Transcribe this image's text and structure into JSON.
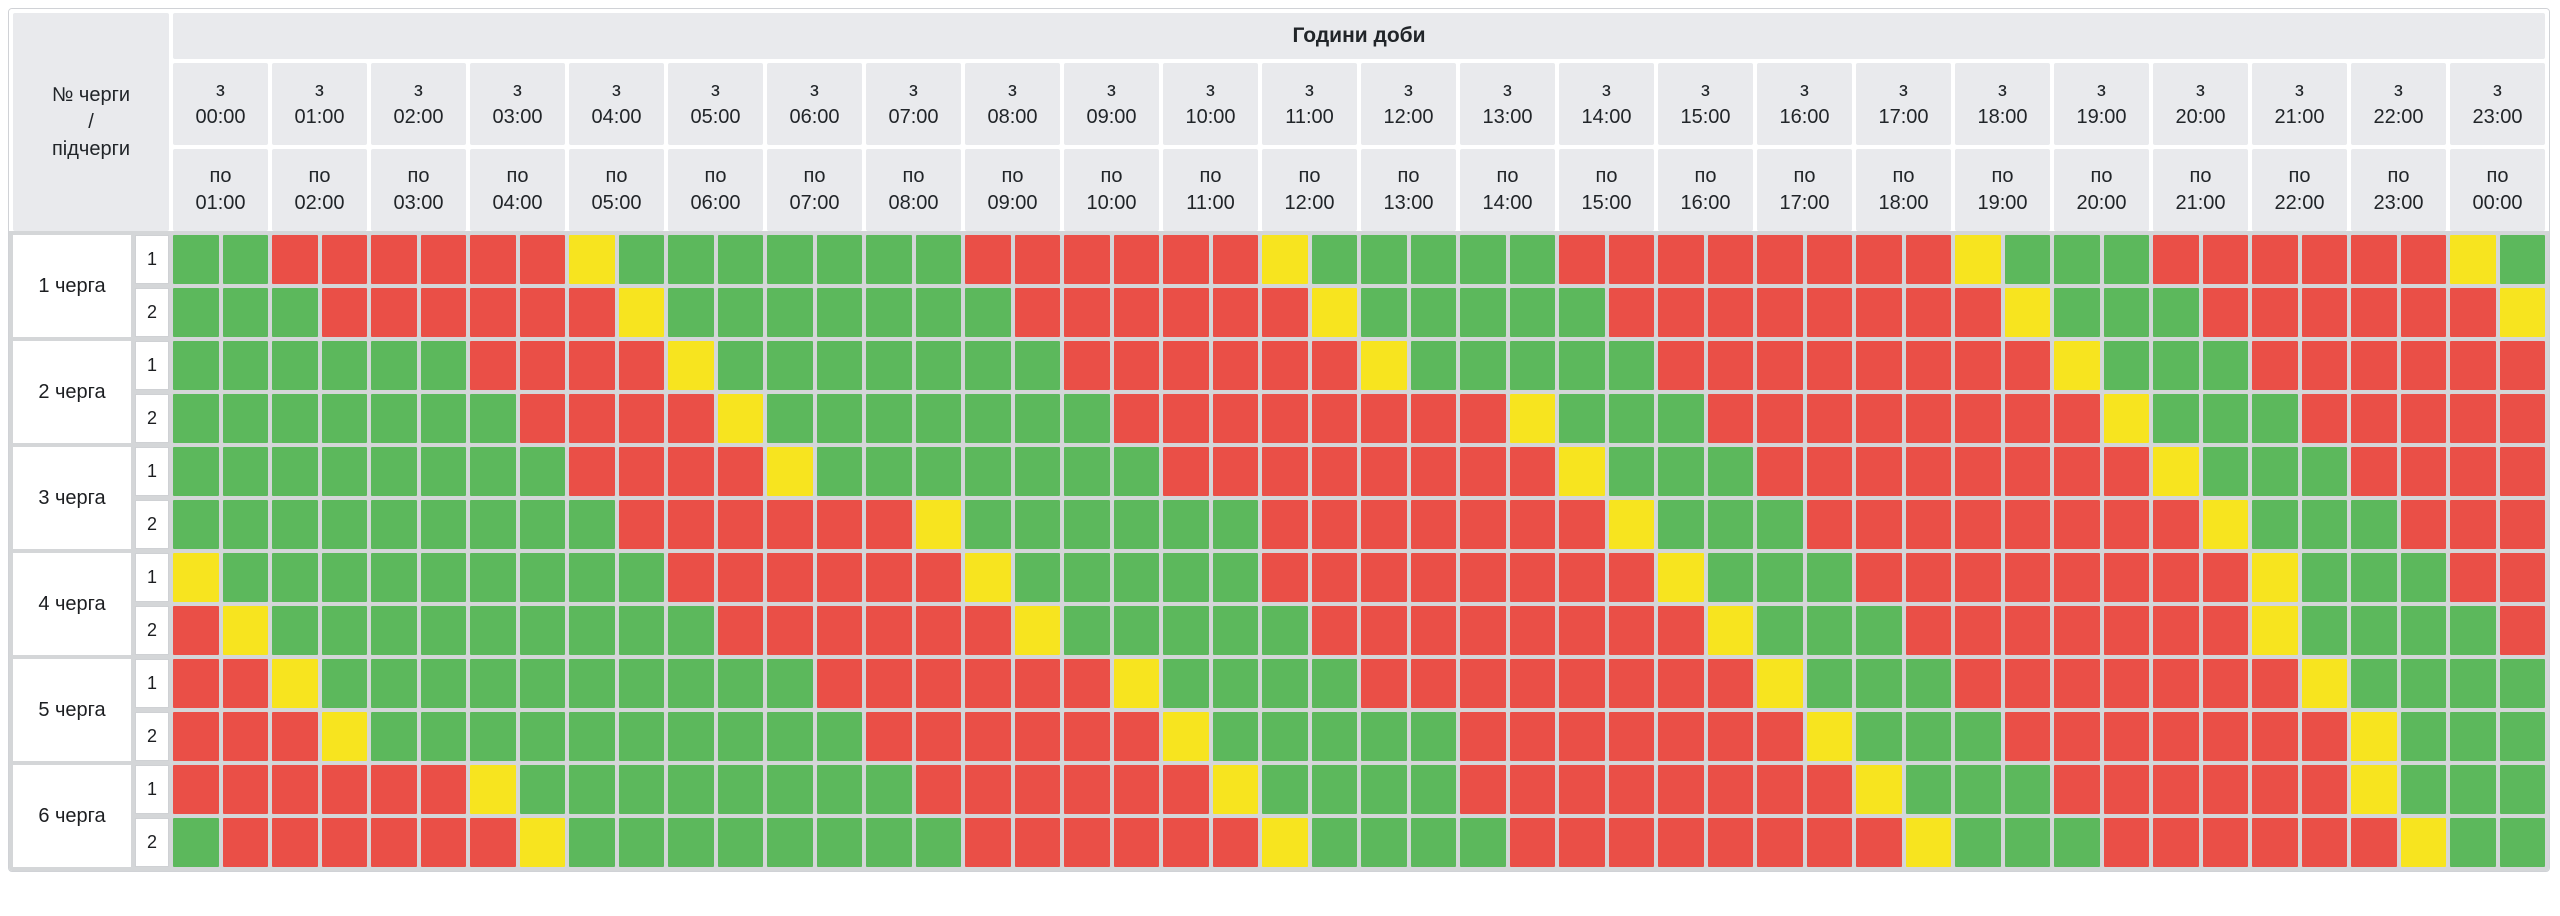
{
  "header": {
    "corner_lines": [
      "№ черги",
      "/",
      "підчерги"
    ],
    "title": "Години доби",
    "from_prefix": "з",
    "to_prefix": "по",
    "from_times": [
      "00:00",
      "01:00",
      "02:00",
      "03:00",
      "04:00",
      "05:00",
      "06:00",
      "07:00",
      "08:00",
      "09:00",
      "10:00",
      "11:00",
      "12:00",
      "13:00",
      "14:00",
      "15:00",
      "16:00",
      "17:00",
      "18:00",
      "19:00",
      "20:00",
      "21:00",
      "22:00",
      "23:00"
    ],
    "to_times": [
      "01:00",
      "02:00",
      "03:00",
      "04:00",
      "05:00",
      "06:00",
      "07:00",
      "08:00",
      "09:00",
      "10:00",
      "11:00",
      "12:00",
      "13:00",
      "14:00",
      "15:00",
      "16:00",
      "17:00",
      "18:00",
      "19:00",
      "20:00",
      "21:00",
      "22:00",
      "23:00",
      "00:00"
    ]
  },
  "colors": {
    "g": "#5cb85c",
    "r": "#ea4f47",
    "y": "#f7e41f",
    "header_bg": "#e9eaed",
    "grid_gap": "#d4d6d8",
    "header_text": "#212529"
  },
  "cell_states": {
    "g": "power-on",
    "r": "outage",
    "y": "possible-outage"
  },
  "slot_minutes": 30,
  "queues": [
    {
      "label": "1 черга",
      "subqueues": [
        {
          "number": "1",
          "cells": "ggrrrrrrygggggggrrrrrrygggggrrrrrrrrygggrrrrrryg"
        },
        {
          "number": "2",
          "cells": "gggrrrrrrygggggggrrrrrrygggggrrrrrrrrygggrrrrrry"
        }
      ]
    },
    {
      "label": "2 черга",
      "subqueues": [
        {
          "number": "1",
          "cells": "ggggggrrrrygggggggrrrrrrygggggrrrrrrrrygggrrrrrr"
        },
        {
          "number": "2",
          "cells": "gggggggrrrrygggggggrrrrrrrrygggrrrrrrrrygggrrrrr"
        }
      ]
    },
    {
      "label": "3 черга",
      "subqueues": [
        {
          "number": "1",
          "cells": "ggggggggrrrrygggggggrrrrrrrrygggrrrrrrrrygggrrrr"
        },
        {
          "number": "2",
          "cells": "gggggggggrrrrrryggggggrrrrrrrygggrrrrrrrrygggrrr"
        }
      ]
    },
    {
      "label": "4 черга",
      "subqueues": [
        {
          "number": "1",
          "cells": "ygggggggggrrrrrrygggggrrrrrrrrygggrrrrrrrrygggrr"
        },
        {
          "number": "2",
          "cells": "rygggggggggrrrrrrygggggrrrrrrrrygggrrrrrrryggggr"
        }
      ]
    },
    {
      "label": "5 черга",
      "subqueues": [
        {
          "number": "1",
          "cells": "rryggggggggggrrrrrryggggrrrrrrrrygggrrrrrrrygggg"
        },
        {
          "number": "2",
          "cells": "rrryggggggggggrrrrrrygggggrrrrrrrygggrrrrrrryggg"
        }
      ]
    },
    {
      "label": "6 черга",
      "subqueues": [
        {
          "number": "1",
          "cells": "rrrrrryggggggggrrrrrryggggrrrrrrrrygggrrrrrryggg"
        },
        {
          "number": "2",
          "cells": "grrrrrryggggggggrrrrrryggggrrrrrrrrygggrrrrrrygg"
        }
      ]
    }
  ]
}
